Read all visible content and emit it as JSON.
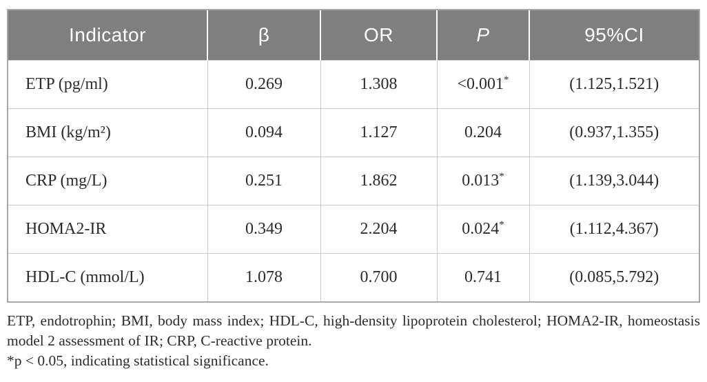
{
  "table": {
    "columns": [
      {
        "key": "indicator",
        "label": "Indicator",
        "italic": false
      },
      {
        "key": "beta",
        "label": "β",
        "italic": false
      },
      {
        "key": "or",
        "label": "OR",
        "italic": false
      },
      {
        "key": "p",
        "label": "P",
        "italic": true
      },
      {
        "key": "ci",
        "label": "95%CI",
        "italic": false
      }
    ],
    "rows": [
      {
        "indicator": "ETP (pg/ml)",
        "beta": "0.269",
        "or": "1.308",
        "p": "<0.001*",
        "ci": "(1.125,1.521)"
      },
      {
        "indicator": "BMI (kg/m²)",
        "beta": "0.094",
        "or": "1.127",
        "p": "0.204",
        "ci": "(0.937,1.355)"
      },
      {
        "indicator": "CRP (mg/L)",
        "beta": "0.251",
        "or": "1.862",
        "p": "0.013*",
        "ci": "(1.139,3.044)"
      },
      {
        "indicator": "HOMA2-IR",
        "beta": "0.349",
        "or": "2.204",
        "p": "0.024*",
        "ci": "(1.112,4.367)"
      },
      {
        "indicator": "HDL-C (mmol/L)",
        "beta": "1.078",
        "or": "0.700",
        "p": "0.741",
        "ci": "(0.085,5.792)"
      }
    ]
  },
  "footnotes": {
    "abbreviations": "ETP, endotrophin; BMI, body mass index; HDL-C, high-density lipoprotein cholesterol; HOMA2-IR, homeostasis model 2 assessment of IR; CRP, C-reactive protein.",
    "significance": "*p < 0.05, indicating statistical significance."
  },
  "colors": {
    "header_bg": "#7e807f",
    "header_text": "#ffffff",
    "body_text": "#2b2b2b",
    "grid_line": "#c9c9c9",
    "outer_border": "#a6a7a6"
  }
}
